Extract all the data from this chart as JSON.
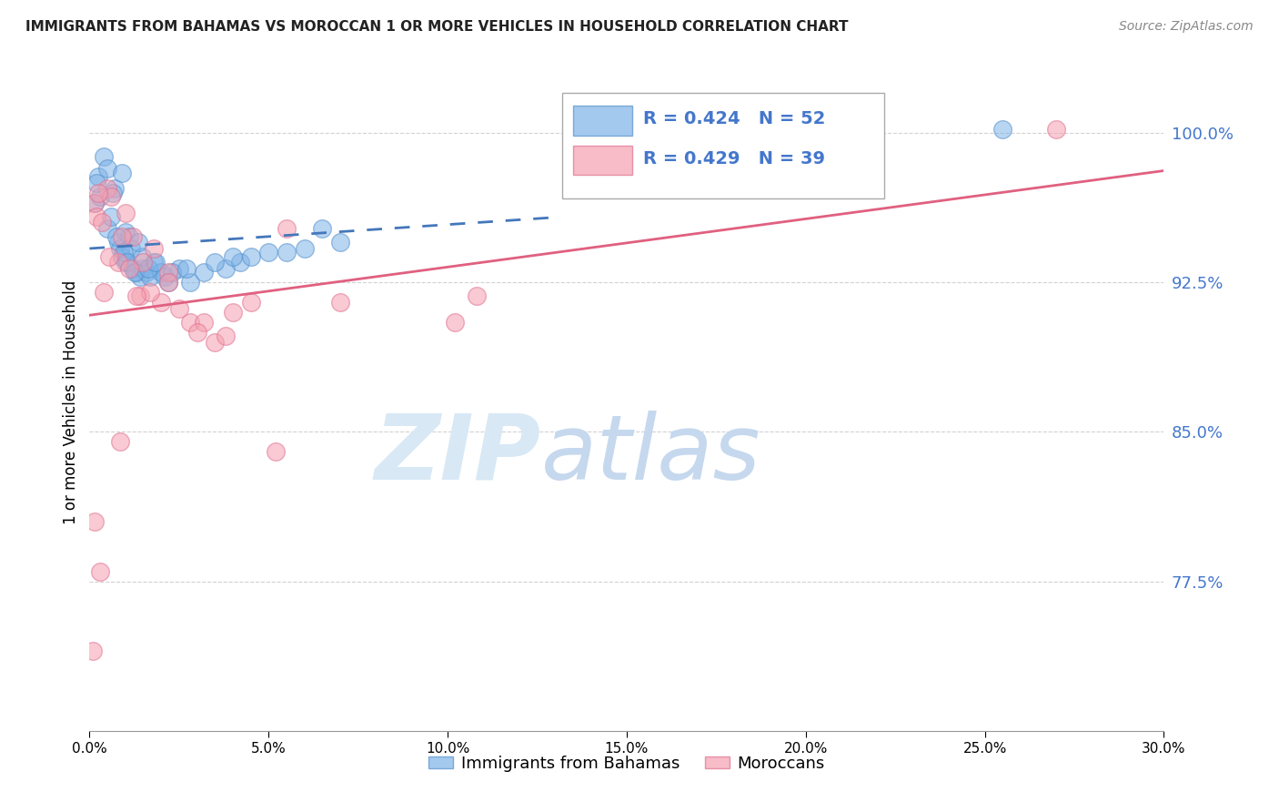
{
  "title": "IMMIGRANTS FROM BAHAMAS VS MOROCCAN 1 OR MORE VEHICLES IN HOUSEHOLD CORRELATION CHART",
  "source": "Source: ZipAtlas.com",
  "ylabel": "1 or more Vehicles in Household",
  "xmin": 0.0,
  "xmax": 30.0,
  "ymin": 70.0,
  "ymax": 103.0,
  "yticks": [
    77.5,
    85.0,
    92.5,
    100.0
  ],
  "ytick_labels": [
    "77.5%",
    "85.0%",
    "92.5%",
    "100.0%"
  ],
  "xtick_vals": [
    0.0,
    5.0,
    10.0,
    15.0,
    20.0,
    25.0,
    30.0
  ],
  "xtick_labels": [
    "0.0%",
    "5.0%",
    "10.0%",
    "15.0%",
    "20.0%",
    "25.0%",
    "30.0%"
  ],
  "legend_label1": "Immigrants from Bahamas",
  "legend_label2": "Moroccans",
  "R1": 0.424,
  "N1": 52,
  "R2": 0.429,
  "N2": 39,
  "blue_color": "#7EB3E8",
  "pink_color": "#F5A0B0",
  "blue_edge_color": "#5590CC",
  "pink_edge_color": "#E07090",
  "blue_line_color": "#4477BB",
  "pink_line_color": "#E06080",
  "watermark_zip": "#D8E8F5",
  "watermark_atlas": "#C5D8EE",
  "blue_x": [
    0.15,
    0.25,
    0.4,
    0.5,
    0.6,
    0.7,
    0.8,
    0.85,
    0.9,
    1.0,
    1.0,
    1.1,
    1.15,
    1.2,
    1.3,
    1.4,
    1.5,
    1.6,
    1.7,
    1.8,
    2.0,
    2.1,
    2.2,
    2.5,
    2.8,
    3.2,
    3.8,
    4.2,
    4.5,
    5.0,
    5.5,
    6.5,
    7.0,
    0.3,
    0.5,
    0.75,
    0.95,
    1.05,
    1.25,
    1.45,
    1.65,
    1.85,
    2.3,
    2.7,
    3.5,
    4.0,
    6.0,
    0.2,
    0.65,
    0.9,
    1.35,
    25.5
  ],
  "blue_y": [
    96.5,
    97.8,
    98.8,
    95.2,
    95.8,
    97.2,
    94.5,
    94.2,
    93.8,
    95.0,
    93.5,
    94.8,
    94.2,
    93.2,
    93.0,
    92.8,
    93.2,
    93.0,
    92.8,
    93.5,
    93.0,
    92.8,
    92.5,
    93.2,
    92.5,
    93.0,
    93.2,
    93.5,
    93.8,
    94.0,
    94.0,
    95.2,
    94.5,
    96.8,
    98.2,
    94.8,
    94.0,
    93.5,
    93.0,
    93.8,
    93.2,
    93.5,
    93.0,
    93.2,
    93.5,
    93.8,
    94.2,
    97.5,
    97.0,
    98.0,
    94.5,
    100.2
  ],
  "pink_x": [
    0.1,
    0.15,
    0.2,
    0.3,
    0.5,
    0.8,
    1.0,
    1.2,
    1.5,
    1.8,
    2.0,
    2.2,
    2.5,
    2.8,
    3.2,
    3.5,
    4.0,
    5.5,
    7.0,
    0.35,
    0.6,
    0.9,
    1.1,
    1.4,
    1.7,
    2.2,
    3.0,
    3.8,
    4.5,
    0.25,
    0.55,
    0.85,
    1.3,
    10.2,
    5.2,
    10.8,
    0.15,
    27.0,
    0.4
  ],
  "pink_y": [
    74.0,
    96.5,
    95.8,
    78.0,
    97.2,
    93.5,
    96.0,
    94.8,
    93.5,
    94.2,
    91.5,
    93.0,
    91.2,
    90.5,
    90.5,
    89.5,
    91.0,
    95.2,
    91.5,
    95.5,
    96.8,
    94.8,
    93.2,
    91.8,
    92.0,
    92.5,
    90.0,
    89.8,
    91.5,
    97.0,
    93.8,
    84.5,
    91.8,
    90.5,
    84.0,
    91.8,
    80.5,
    100.2,
    92.0
  ]
}
